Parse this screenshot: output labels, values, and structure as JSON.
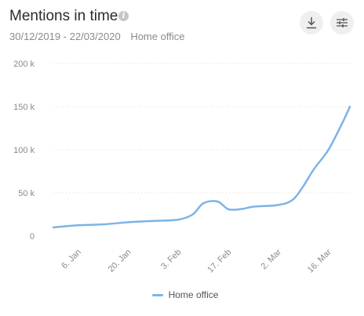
{
  "header": {
    "title": "Mentions in time",
    "info_icon": "info-icon",
    "date_range": "30/12/2019 - 22/03/2020",
    "topic": "Home office"
  },
  "toolbar": {
    "download_icon": "download-icon",
    "settings_icon": "sliders-icon"
  },
  "colors": {
    "series": "#7cb4e8",
    "grid": "#d9d9d9",
    "axis_text": "#8a8a8a"
  },
  "chart_data": {
    "type": "line",
    "title": "Mentions in time",
    "subtitle": "30/12/2019 - 22/03/2020",
    "xlabel": "",
    "ylabel": "",
    "ylim": [
      0,
      200000
    ],
    "y_ticks": [
      0,
      50000,
      100000,
      150000,
      200000
    ],
    "y_tick_labels": [
      "0",
      "50 k",
      "100 k",
      "150 k",
      "200 k"
    ],
    "x_range": [
      "2019-12-30",
      "2020-03-22"
    ],
    "x_ticks": [
      "2020-01-06",
      "2020-01-20",
      "2020-02-03",
      "2020-02-17",
      "2020-03-02",
      "2020-03-16"
    ],
    "x_tick_labels": [
      "6. Jan",
      "20. Jan",
      "3. Feb",
      "17. Feb",
      "2. Mar",
      "16. Mar"
    ],
    "grid": true,
    "grid_style": "dotted",
    "legend": "bottom-center",
    "series": [
      {
        "name": "Home office",
        "x": [
          "2019-12-30",
          "2020-01-06",
          "2020-01-13",
          "2020-01-20",
          "2020-01-27",
          "2020-02-03",
          "2020-02-07",
          "2020-02-10",
          "2020-02-14",
          "2020-02-17",
          "2020-02-21",
          "2020-02-24",
          "2020-03-02",
          "2020-03-06",
          "2020-03-09",
          "2020-03-12",
          "2020-03-16",
          "2020-03-20",
          "2020-03-22"
        ],
        "y": [
          10000,
          12500,
          13500,
          16000,
          17500,
          19000,
          25000,
          38000,
          40000,
          31000,
          31500,
          34000,
          36000,
          42000,
          58000,
          78000,
          100000,
          132000,
          150000
        ]
      }
    ]
  },
  "legend_items": [
    {
      "label": "Home office"
    }
  ]
}
